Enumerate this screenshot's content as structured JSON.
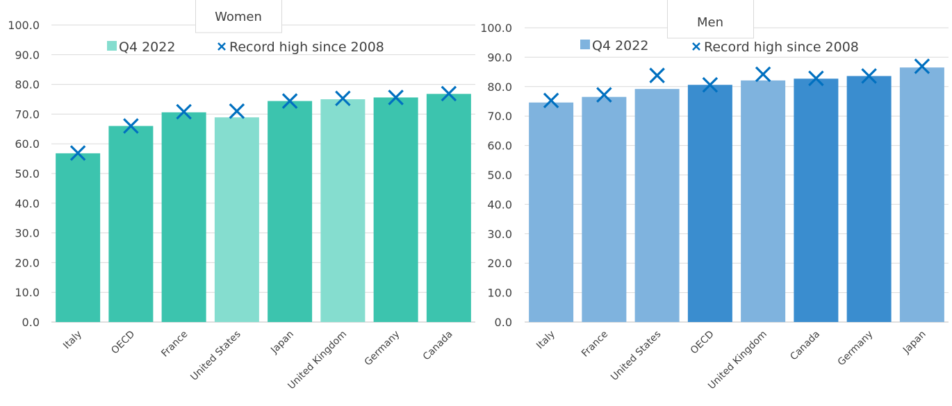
{
  "charts": [
    {
      "id": "women",
      "title": "Women",
      "type": "bar",
      "categories": [
        "Italy",
        "OECD",
        "France",
        "United States",
        "Japan",
        "United Kingdom",
        "Germany",
        "Canada"
      ],
      "series": [
        {
          "name": "Q4 2022",
          "type": "bar",
          "values": [
            56.8,
            66.0,
            70.6,
            68.9,
            74.4,
            75.0,
            75.6,
            76.8
          ]
        },
        {
          "name": "Record high since 2008",
          "type": "marker",
          "values": [
            56.9,
            66.0,
            70.8,
            71.0,
            74.4,
            75.3,
            75.6,
            76.9
          ]
        }
      ],
      "bar_colors": [
        "#3cc4ae",
        "#3cc4ae",
        "#3cc4ae",
        "#85ddcf",
        "#3cc4ae",
        "#85ddcf",
        "#3cc4ae",
        "#3cc4ae"
      ],
      "legend_bar_color": "#85ddcf",
      "marker_color": "#0070c0",
      "ylim": [
        0,
        100
      ],
      "yticks": [
        "0.0",
        "10.0",
        "20.0",
        "30.0",
        "40.0",
        "50.0",
        "60.0",
        "70.0",
        "80.0",
        "90.0",
        "100.0"
      ],
      "grid": true,
      "legend": "top"
    },
    {
      "id": "men",
      "title": "Men",
      "type": "bar",
      "categories": [
        "Italy",
        "France",
        "United States",
        "OECD",
        "United Kingdom",
        "Canada",
        "Germany",
        "Japan"
      ],
      "series": [
        {
          "name": "Q4 2022",
          "type": "bar",
          "values": [
            74.6,
            76.5,
            79.2,
            80.6,
            82.1,
            82.7,
            83.6,
            86.5
          ]
        },
        {
          "name": "Record high since 2008",
          "type": "marker",
          "values": [
            75.3,
            77.2,
            83.8,
            80.6,
            84.2,
            82.8,
            83.6,
            86.9
          ]
        }
      ],
      "bar_colors": [
        "#7fb3de",
        "#7fb3de",
        "#7fb3de",
        "#3a8dcf",
        "#7fb3de",
        "#3a8dcf",
        "#3a8dcf",
        "#7fb3de"
      ],
      "legend_bar_color": "#7fb3de",
      "marker_color": "#0070c0",
      "ylim": [
        0,
        100
      ],
      "yticks": [
        "0.0",
        "10.0",
        "20.0",
        "30.0",
        "40.0",
        "50.0",
        "60.0",
        "70.0",
        "80.0",
        "90.0",
        "100.0"
      ],
      "grid": true,
      "legend": "top"
    }
  ]
}
